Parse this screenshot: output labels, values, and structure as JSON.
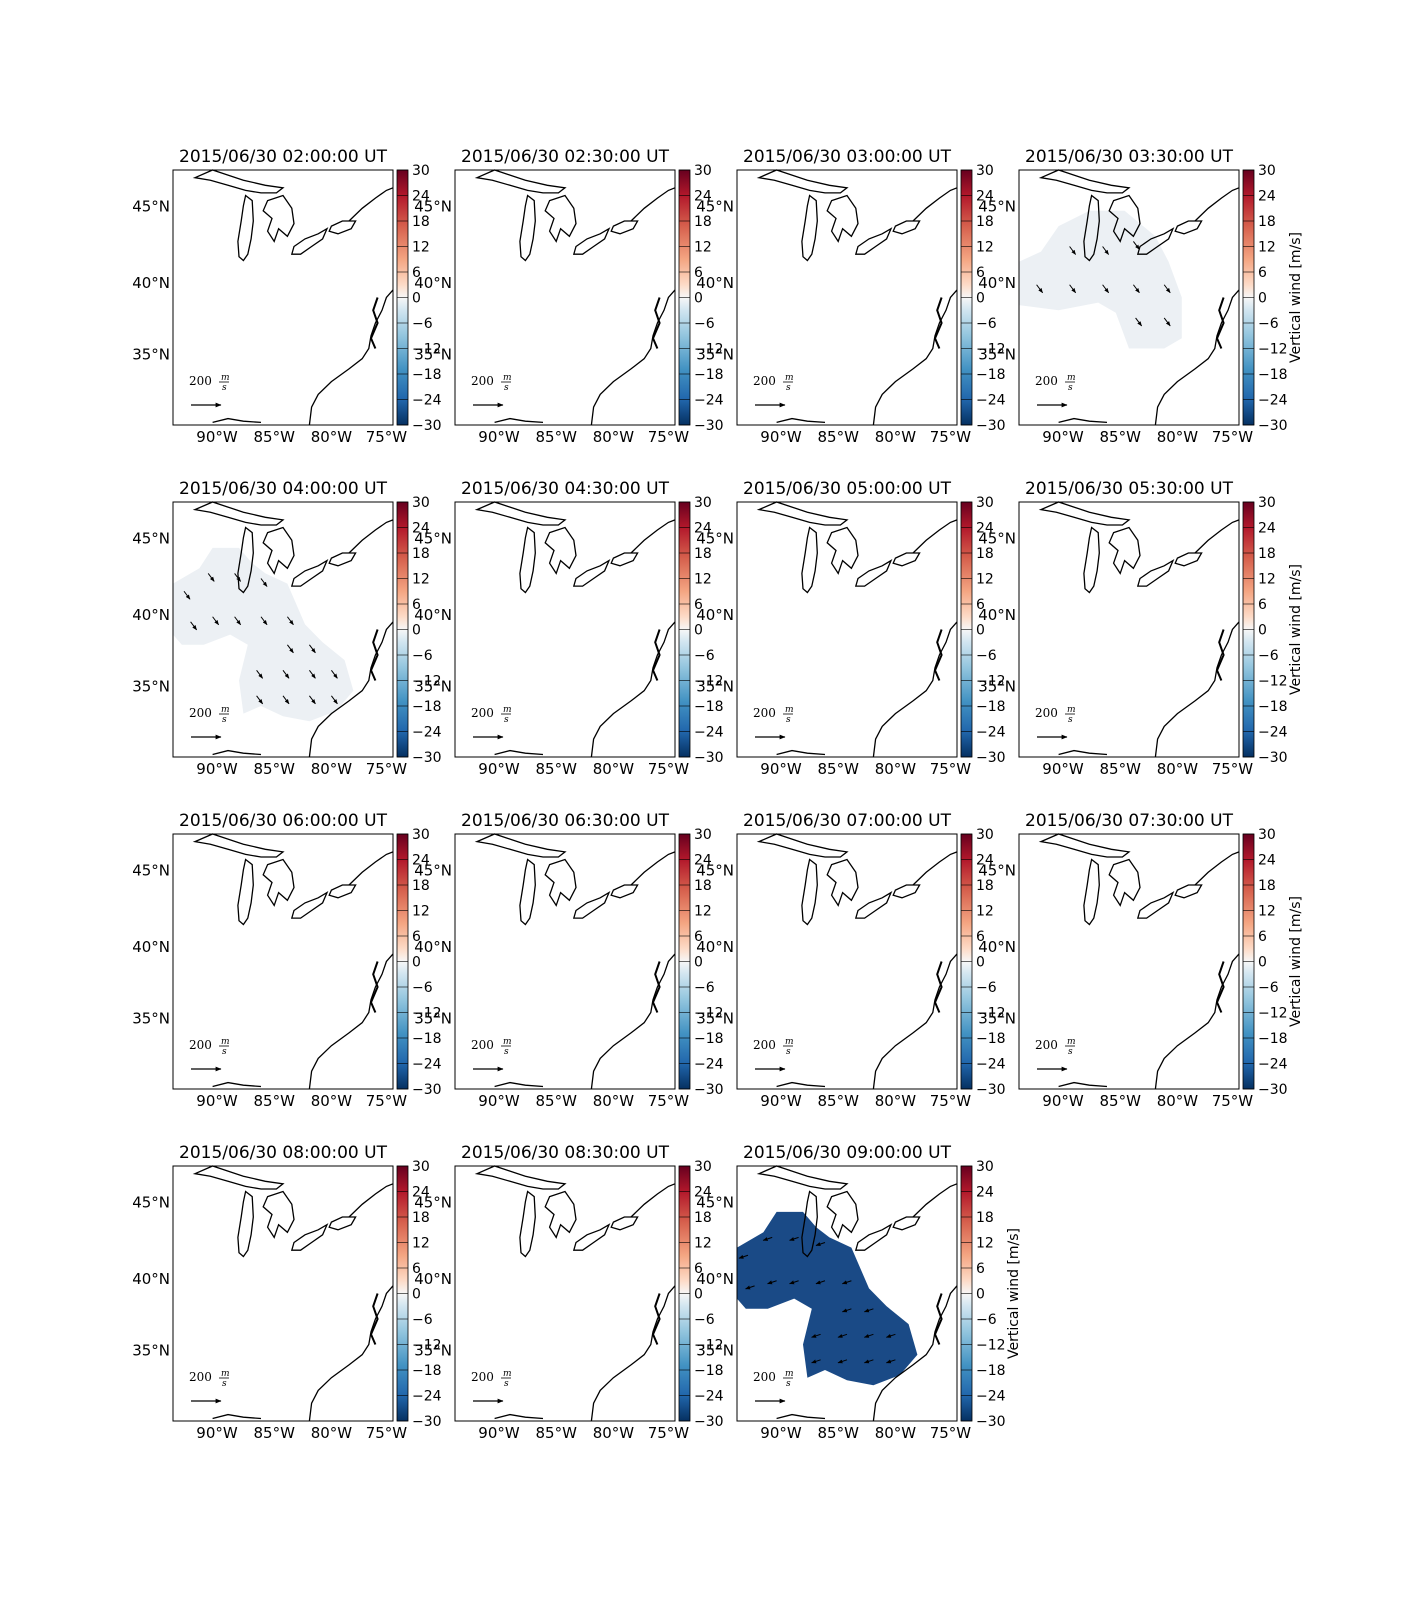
{
  "figure": {
    "panels": [
      {
        "title": "2015/06/30 02:00:00 UT",
        "patch": "none"
      },
      {
        "title": "2015/06/30 02:30:00 UT",
        "patch": "none"
      },
      {
        "title": "2015/06/30 03:00:00 UT",
        "patch": "none"
      },
      {
        "title": "2015/06/30 03:30:00 UT",
        "patch": "north",
        "value": -1,
        "arrow_dir": "southeast",
        "cbar_label": "Vertical wind [m/s]"
      },
      {
        "title": "2015/06/30 04:00:00 UT",
        "patch": "south",
        "value": -1,
        "arrow_dir": "southeast"
      },
      {
        "title": "2015/06/30 04:30:00 UT",
        "patch": "none"
      },
      {
        "title": "2015/06/30 05:00:00 UT",
        "patch": "none"
      },
      {
        "title": "2015/06/30 05:30:00 UT",
        "patch": "none",
        "cbar_label": "Vertical wind [m/s]"
      },
      {
        "title": "2015/06/30 06:00:00 UT",
        "patch": "none"
      },
      {
        "title": "2015/06/30 06:30:00 UT",
        "patch": "none"
      },
      {
        "title": "2015/06/30 07:00:00 UT",
        "patch": "none"
      },
      {
        "title": "2015/06/30 07:30:00 UT",
        "patch": "none",
        "cbar_label": "Vertical wind [m/s]"
      },
      {
        "title": "2015/06/30 08:00:00 UT",
        "patch": "none"
      },
      {
        "title": "2015/06/30 08:30:00 UT",
        "patch": "none"
      },
      {
        "title": "2015/06/30 09:00:00 UT",
        "patch": "south",
        "value": -24,
        "arrow_dir": "west",
        "cbar_label": "Vertical wind [m/s]"
      }
    ],
    "lat_ticks": [
      "45°N",
      "40°N",
      "35°N"
    ],
    "lon_ticks": [
      "90°W",
      "85°W",
      "80°W",
      "75°W"
    ],
    "cbar_ticks": [
      "30",
      "24",
      "18",
      "12",
      "6",
      "0",
      "−6",
      "−12",
      "−18",
      "−24",
      "−30"
    ],
    "cbar_values": [
      30,
      24,
      18,
      12,
      6,
      0,
      -6,
      -12,
      -18,
      -24,
      -30
    ],
    "vmin": -30,
    "vmax": 30,
    "scale_label": "200",
    "scale_unit_num": "m",
    "scale_unit_den": "s",
    "colors": {
      "high": "#67001f",
      "mid": "#f7f7f7",
      "low": "#053061",
      "faint_patch": "#ecf0f4",
      "strong_patch": "#1a4a86"
    }
  }
}
